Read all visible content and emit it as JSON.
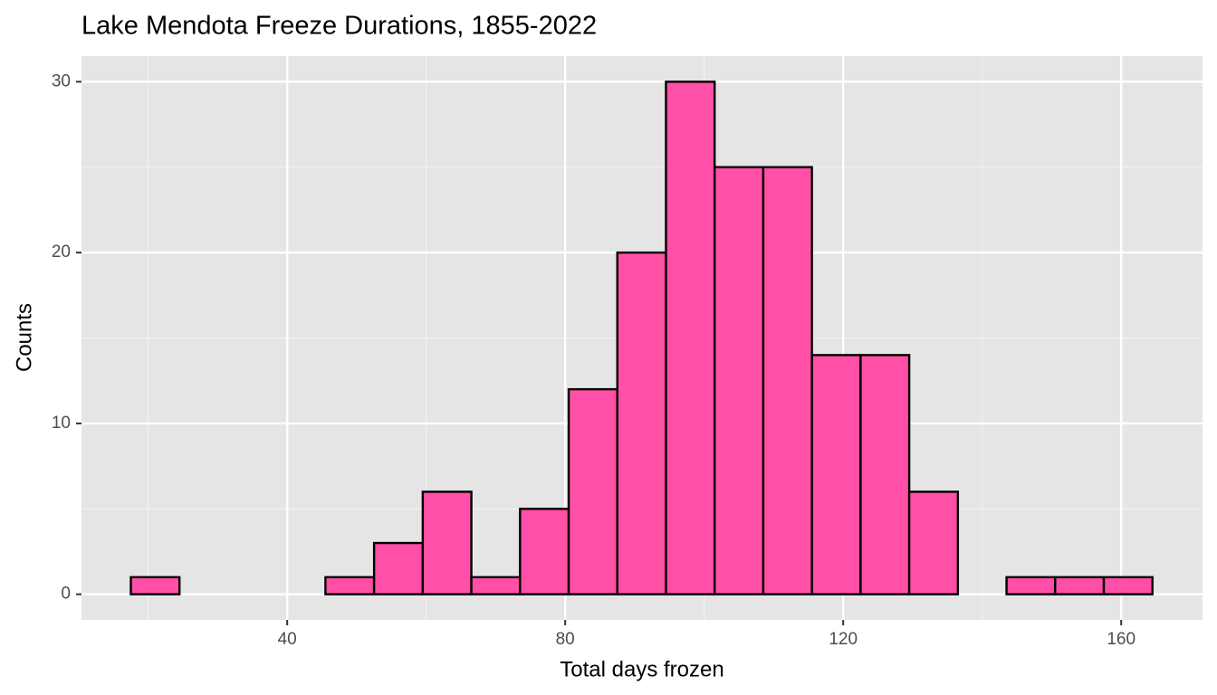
{
  "chart_data": {
    "type": "histogram",
    "title": "Lake Mendota Freeze Durations, 1855-2022",
    "x_label": "Total days frozen",
    "y_label": "Counts",
    "bins": [
      17.5,
      24.5,
      31.5,
      38.5,
      45.5,
      52.5,
      59.5,
      66.5,
      73.5,
      80.5,
      87.5,
      94.5,
      101.5,
      108.5,
      115.5,
      122.5,
      129.5,
      136.5,
      143.5,
      150.5,
      157.5,
      164.5
    ],
    "values": [
      1,
      0,
      0,
      0,
      1,
      3,
      6,
      1,
      5,
      12,
      20,
      30,
      25,
      25,
      14,
      14,
      6,
      0,
      1,
      1,
      1
    ],
    "color": "#ff4fa7",
    "edge_color": "#000000",
    "xlim": [
      10.4,
      171.7
    ],
    "xticks": [
      40,
      80,
      120,
      160
    ],
    "x_minor_ticks": [
      20,
      60,
      100,
      140
    ],
    "ylim": [
      -1.5,
      31.5
    ],
    "yticks": [
      0,
      10,
      20,
      30
    ],
    "y_minor_ticks": [
      5,
      15,
      25
    ],
    "grid": true
  }
}
